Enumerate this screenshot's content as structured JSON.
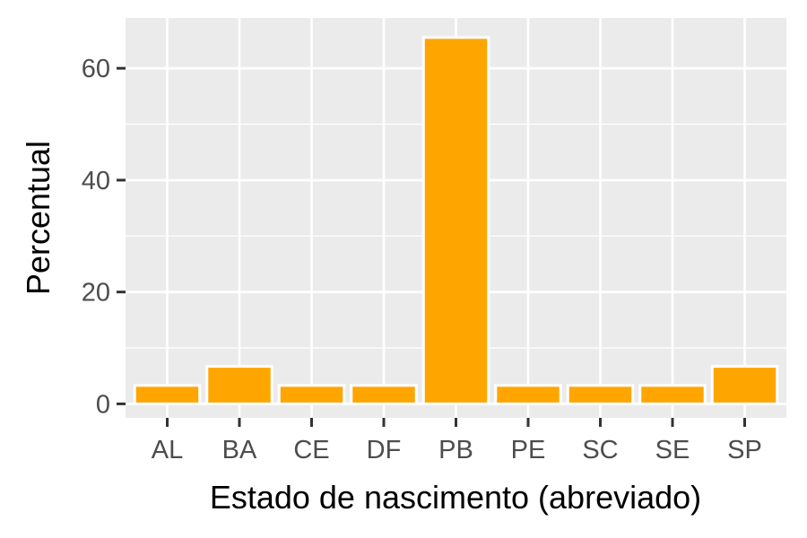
{
  "chart_data": {
    "type": "bar",
    "categories": [
      "AL",
      "BA",
      "CE",
      "DF",
      "PB",
      "PE",
      "SC",
      "SE",
      "SP"
    ],
    "values": [
      3.3,
      6.7,
      3.3,
      3.3,
      65.5,
      3.3,
      3.3,
      3.3,
      6.7
    ],
    "xlabel": "Estado de nascimento (abreviado)",
    "ylabel": "Percentual",
    "ylim": [
      -2.5,
      69
    ],
    "yticks": [
      0,
      20,
      40,
      60
    ],
    "grid": true,
    "colors": {
      "bar_fill": "#FFA500",
      "bar_outline": "#FFFFFF",
      "panel": "#EBEBEB",
      "grid": "#FFFFFF",
      "tick_text": "#4D4D4D",
      "tick_mark": "#333333"
    }
  }
}
